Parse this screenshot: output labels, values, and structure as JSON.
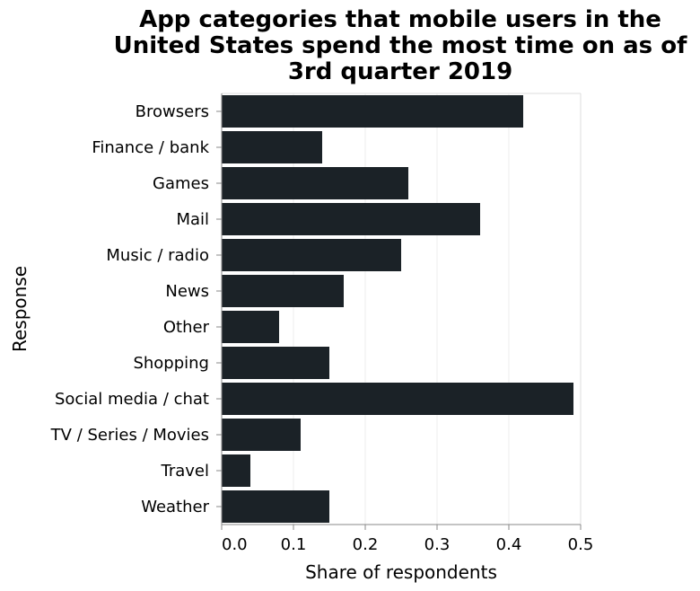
{
  "chart_data": {
    "type": "bar",
    "orientation": "horizontal",
    "title_lines": [
      "App categories that mobile users in the",
      "United States spend the most time on as of",
      "3rd quarter 2019"
    ],
    "xlabel": "Share of respondents",
    "ylabel": "Response",
    "categories": [
      "Browsers",
      "Finance / bank",
      "Games",
      "Mail",
      "Music / radio",
      "News",
      "Other",
      "Shopping",
      "Social media / chat",
      "TV / Series / Movies",
      "Travel",
      "Weather"
    ],
    "values": [
      0.42,
      0.14,
      0.26,
      0.36,
      0.25,
      0.17,
      0.08,
      0.15,
      0.49,
      0.11,
      0.04,
      0.15
    ],
    "xlim": [
      0,
      0.5
    ],
    "xticks": [
      "0.0",
      "0.1",
      "0.2",
      "0.3",
      "0.4",
      "0.5"
    ],
    "grid": "vertical",
    "legend": "none",
    "bar_color": "#1b2227",
    "grid_color": "#eeeeee",
    "axis_color": "#888888"
  }
}
